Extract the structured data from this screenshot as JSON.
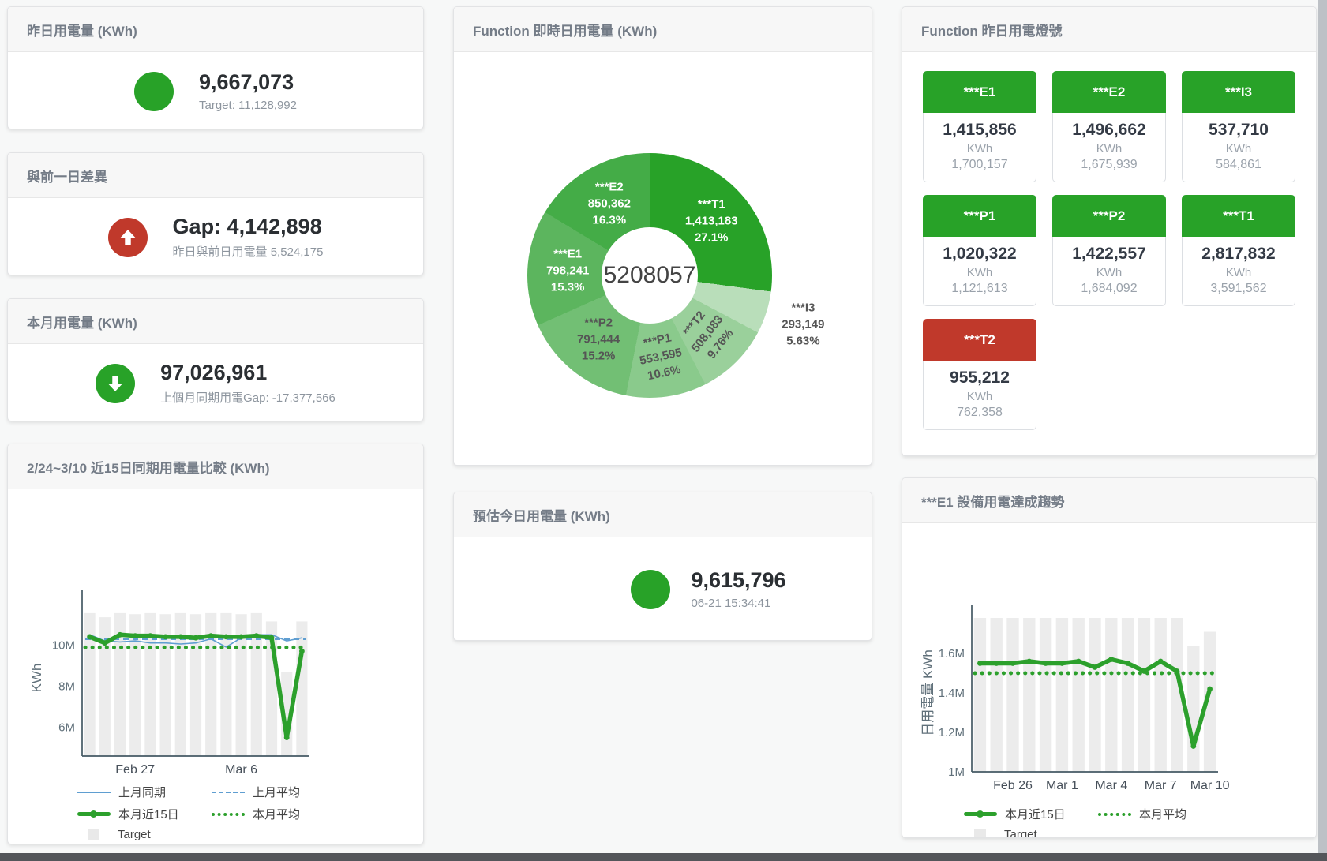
{
  "cards": {
    "yesterday": {
      "title": "昨日用電量 (KWh)",
      "value": "9,667,073",
      "sub": "Target: 11,128,992"
    },
    "gap": {
      "title": "與前一日差異",
      "value": "Gap: 4,142,898",
      "sub": "昨日與前日用電量 5,524,175"
    },
    "month": {
      "title": "本月用電量 (KWh)",
      "value": "97,026,961",
      "sub": "上個月同期用電Gap: -17,377,566"
    },
    "estimate": {
      "title": "預估今日用電量 (KWh)",
      "value": "9,615,796",
      "sub": "06-21 15:34:41"
    }
  },
  "lights": {
    "title": "Function 昨日用電燈號",
    "unit": "KWh",
    "status_colors": {
      "green": "#28a228",
      "red": "#c0392b"
    },
    "tiles": [
      {
        "label": "***E1",
        "value": "1,415,856",
        "target": "1,700,157",
        "status": "green"
      },
      {
        "label": "***E2",
        "value": "1,496,662",
        "target": "1,675,939",
        "status": "green"
      },
      {
        "label": "***I3",
        "value": "537,710",
        "target": "584,861",
        "status": "green"
      },
      {
        "label": "***P1",
        "value": "1,020,322",
        "target": "1,121,613",
        "status": "green"
      },
      {
        "label": "***P2",
        "value": "1,422,557",
        "target": "1,684,092",
        "status": "green"
      },
      {
        "label": "***T1",
        "value": "2,817,832",
        "target": "3,591,562",
        "status": "green"
      },
      {
        "label": "***T2",
        "value": "955,212",
        "target": "762,358",
        "status": "red"
      }
    ]
  },
  "chart_data": [
    {
      "type": "pie",
      "title": "Function 即時日用電量 (KWh)",
      "center_total": "5208057",
      "series": [
        {
          "label": "***T1",
          "value": 1413183,
          "pct": 27.1,
          "display_value": "1,413,183",
          "display_pct": "27.1%",
          "color": "#28a228",
          "label_text_color": "#ffffff"
        },
        {
          "label": "***I3",
          "value": 293149,
          "pct": 5.63,
          "display_value": "293,149",
          "display_pct": "5.63%",
          "color": "#b9deba",
          "label_text_color": "#555555",
          "label_outside": true
        },
        {
          "label": "***T2",
          "value": 508083,
          "pct": 9.76,
          "display_value": "508,083",
          "display_pct": "9.76%",
          "color": "#9ad09b",
          "label_text_color": "#555555",
          "label_rotation": -52
        },
        {
          "label": "***P1",
          "value": 553595,
          "pct": 10.63,
          "display_value": "553,595",
          "display_pct": "10.6%",
          "color": "#8aca8c",
          "label_text_color": "#555555",
          "label_rotation": -12
        },
        {
          "label": "***P2",
          "value": 791444,
          "pct": 15.2,
          "display_value": "791,444",
          "display_pct": "15.2%",
          "color": "#72bf74",
          "label_text_color": "#555555"
        },
        {
          "label": "***E1",
          "value": 798241,
          "pct": 15.33,
          "display_value": "798,241",
          "display_pct": "15.3%",
          "color": "#5cb55e",
          "label_text_color": "#ffffff"
        },
        {
          "label": "***E2",
          "value": 850362,
          "pct": 16.33,
          "display_value": "850,362",
          "display_pct": "16.3%",
          "color": "#44ac47",
          "label_text_color": "#ffffff"
        }
      ]
    },
    {
      "type": "line",
      "title": "2/24~3/10 近15日同期用電量比較 (KWh)",
      "ylabel": "KWh",
      "ylim": [
        4.6,
        12.2
      ],
      "yticks": [
        {
          "v": 6,
          "label": "6M"
        },
        {
          "v": 8,
          "label": "8M"
        },
        {
          "v": 10,
          "label": "10M"
        }
      ],
      "xticks": [
        {
          "i": 3,
          "label": "Feb 27"
        },
        {
          "i": 10,
          "label": "Mar 6"
        }
      ],
      "target_color": "#ececec",
      "target_bars": [
        11.55,
        11.35,
        11.55,
        11.5,
        11.55,
        11.5,
        11.55,
        11.5,
        11.55,
        11.55,
        11.5,
        11.55,
        11.15,
        8.7,
        11.15
      ],
      "series": [
        {
          "name": "上月同期",
          "type": "line",
          "color": "#5f9ed1",
          "width": 1.6,
          "values": [
            10.5,
            10.2,
            10.15,
            10.2,
            10.1,
            10.1,
            10.05,
            10.1,
            10.3,
            9.9,
            10.35,
            10.5,
            10.5,
            10.2,
            10.35
          ]
        },
        {
          "name": "上月平均",
          "type": "dashed",
          "color": "#5f9ed1",
          "value": 10.28
        },
        {
          "name": "本月近15日",
          "type": "thick",
          "color": "#2ca02c",
          "width": 5.5,
          "values": [
            10.4,
            10.1,
            10.5,
            10.45,
            10.45,
            10.4,
            10.4,
            10.35,
            10.45,
            10.4,
            10.4,
            10.45,
            10.35,
            5.5,
            9.7
          ]
        },
        {
          "name": "本月平均",
          "type": "dotted",
          "color": "#2ca02c",
          "value": 9.88
        }
      ],
      "legend": [
        "上月同期",
        "上月平均",
        "本月近15日",
        "本月平均",
        "Target"
      ]
    },
    {
      "type": "line",
      "title": "***E1 設備用電達成趨勢",
      "ylabel": "日用電量 KWh",
      "ylim": [
        1.0,
        1.8
      ],
      "yticks": [
        {
          "v": 1,
          "label": "1M"
        },
        {
          "v": 1.2,
          "label": "1.2M"
        },
        {
          "v": 1.4,
          "label": "1.4M"
        },
        {
          "v": 1.6,
          "label": "1.6M"
        }
      ],
      "xticks": [
        {
          "i": 2,
          "label": "Feb 26"
        },
        {
          "i": 5,
          "label": "Mar 1"
        },
        {
          "i": 8,
          "label": "Mar 4"
        },
        {
          "i": 11,
          "label": "Mar 7"
        },
        {
          "i": 14,
          "label": "Mar 10"
        }
      ],
      "target_color": "#ececec",
      "target_bars": [
        1.78,
        1.78,
        1.78,
        1.78,
        1.78,
        1.78,
        1.78,
        1.78,
        1.78,
        1.78,
        1.78,
        1.78,
        1.78,
        1.64,
        1.71
      ],
      "series": [
        {
          "name": "本月近15日",
          "type": "thick",
          "color": "#2ca02c",
          "width": 5.5,
          "values": [
            1.55,
            1.55,
            1.55,
            1.56,
            1.55,
            1.55,
            1.56,
            1.53,
            1.57,
            1.55,
            1.51,
            1.56,
            1.51,
            1.13,
            1.42
          ]
        },
        {
          "name": "本月平均",
          "type": "dotted",
          "color": "#2ca02c",
          "value": 1.5
        }
      ],
      "legend": [
        "本月近15日",
        "本月平均",
        "Target"
      ]
    }
  ]
}
